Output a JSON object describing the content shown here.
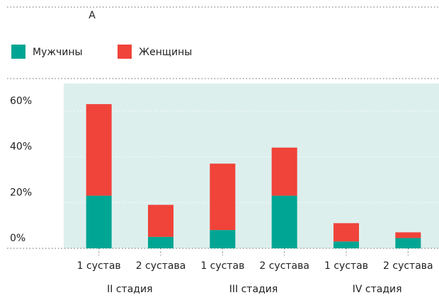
{
  "chart_data": {
    "type": "stacked_bar",
    "title": "A",
    "categories": [
      "1 сустав",
      "2 сустава",
      "1 сустав",
      "2 сустава",
      "1 сустав",
      "2 сустава"
    ],
    "groups": [
      "II стадия",
      "III стадия",
      "IV стадия"
    ],
    "series": [
      {
        "name": "Мужчины",
        "color": "#00a693",
        "values": [
          23,
          5,
          8,
          23,
          3,
          4.5
        ]
      },
      {
        "name": "Женщины",
        "color": "#f0433a",
        "values": [
          40,
          14,
          29,
          21,
          8,
          2.5
        ]
      }
    ],
    "ylim": [
      0,
      72
    ],
    "yticks": [
      {
        "value": 0,
        "label": "0%"
      },
      {
        "value": 20,
        "label": "20%"
      },
      {
        "value": 40,
        "label": "40%"
      },
      {
        "value": 60,
        "label": "60%"
      }
    ],
    "grid": true
  }
}
